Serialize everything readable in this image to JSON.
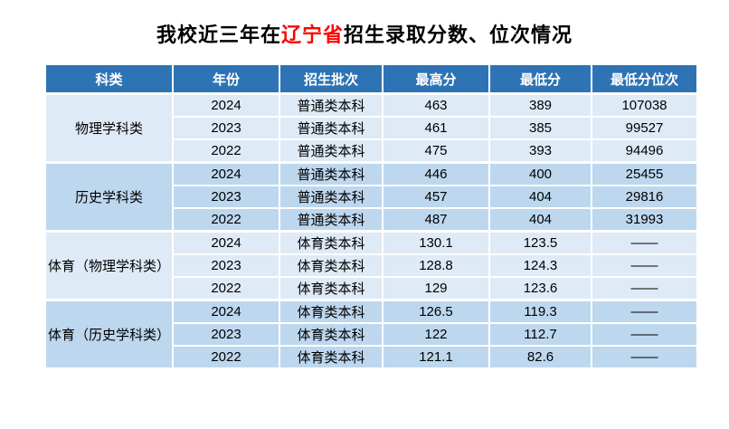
{
  "title": {
    "prefix": "我校近三年在",
    "highlight": "辽宁省",
    "suffix": "招生录取分数、位次情况"
  },
  "colors": {
    "header_bg": "#2e74b5",
    "header_text": "#ffffff",
    "band_light": "#deeaf6",
    "band_dark": "#bdd7ee",
    "title_highlight": "#ff0000",
    "cell_border": "#ffffff",
    "body_text": "#000000"
  },
  "table": {
    "headers": [
      "科类",
      "年份",
      "招生批次",
      "最高分",
      "最低分",
      "最低分位次"
    ],
    "groups": [
      {
        "category": "物理学科类",
        "rows": [
          {
            "year": "2024",
            "batch": "普通类本科",
            "max": "463",
            "min": "389",
            "rank": "107038"
          },
          {
            "year": "2023",
            "batch": "普通类本科",
            "max": "461",
            "min": "385",
            "rank": "99527"
          },
          {
            "year": "2022",
            "batch": "普通类本科",
            "max": "475",
            "min": "393",
            "rank": "94496"
          }
        ]
      },
      {
        "category": "历史学科类",
        "rows": [
          {
            "year": "2024",
            "batch": "普通类本科",
            "max": "446",
            "min": "400",
            "rank": "25455"
          },
          {
            "year": "2023",
            "batch": "普通类本科",
            "max": "457",
            "min": "404",
            "rank": "29816"
          },
          {
            "year": "2022",
            "batch": "普通类本科",
            "max": "487",
            "min": "404",
            "rank": "31993"
          }
        ]
      },
      {
        "category": "体育（物理学科类）",
        "rows": [
          {
            "year": "2024",
            "batch": "体育类本科",
            "max": "130.1",
            "min": "123.5",
            "rank": "——"
          },
          {
            "year": "2023",
            "batch": "体育类本科",
            "max": "128.8",
            "min": "124.3",
            "rank": "——"
          },
          {
            "year": "2022",
            "batch": "体育类本科",
            "max": "129",
            "min": "123.6",
            "rank": "——"
          }
        ]
      },
      {
        "category": "体育（历史学科类）",
        "rows": [
          {
            "year": "2024",
            "batch": "体育类本科",
            "max": "126.5",
            "min": "119.3",
            "rank": "——"
          },
          {
            "year": "2023",
            "batch": "体育类本科",
            "max": "122",
            "min": "112.7",
            "rank": "——"
          },
          {
            "year": "2022",
            "batch": "体育类本科",
            "max": "121.1",
            "min": "82.6",
            "rank": "——"
          }
        ]
      }
    ]
  }
}
